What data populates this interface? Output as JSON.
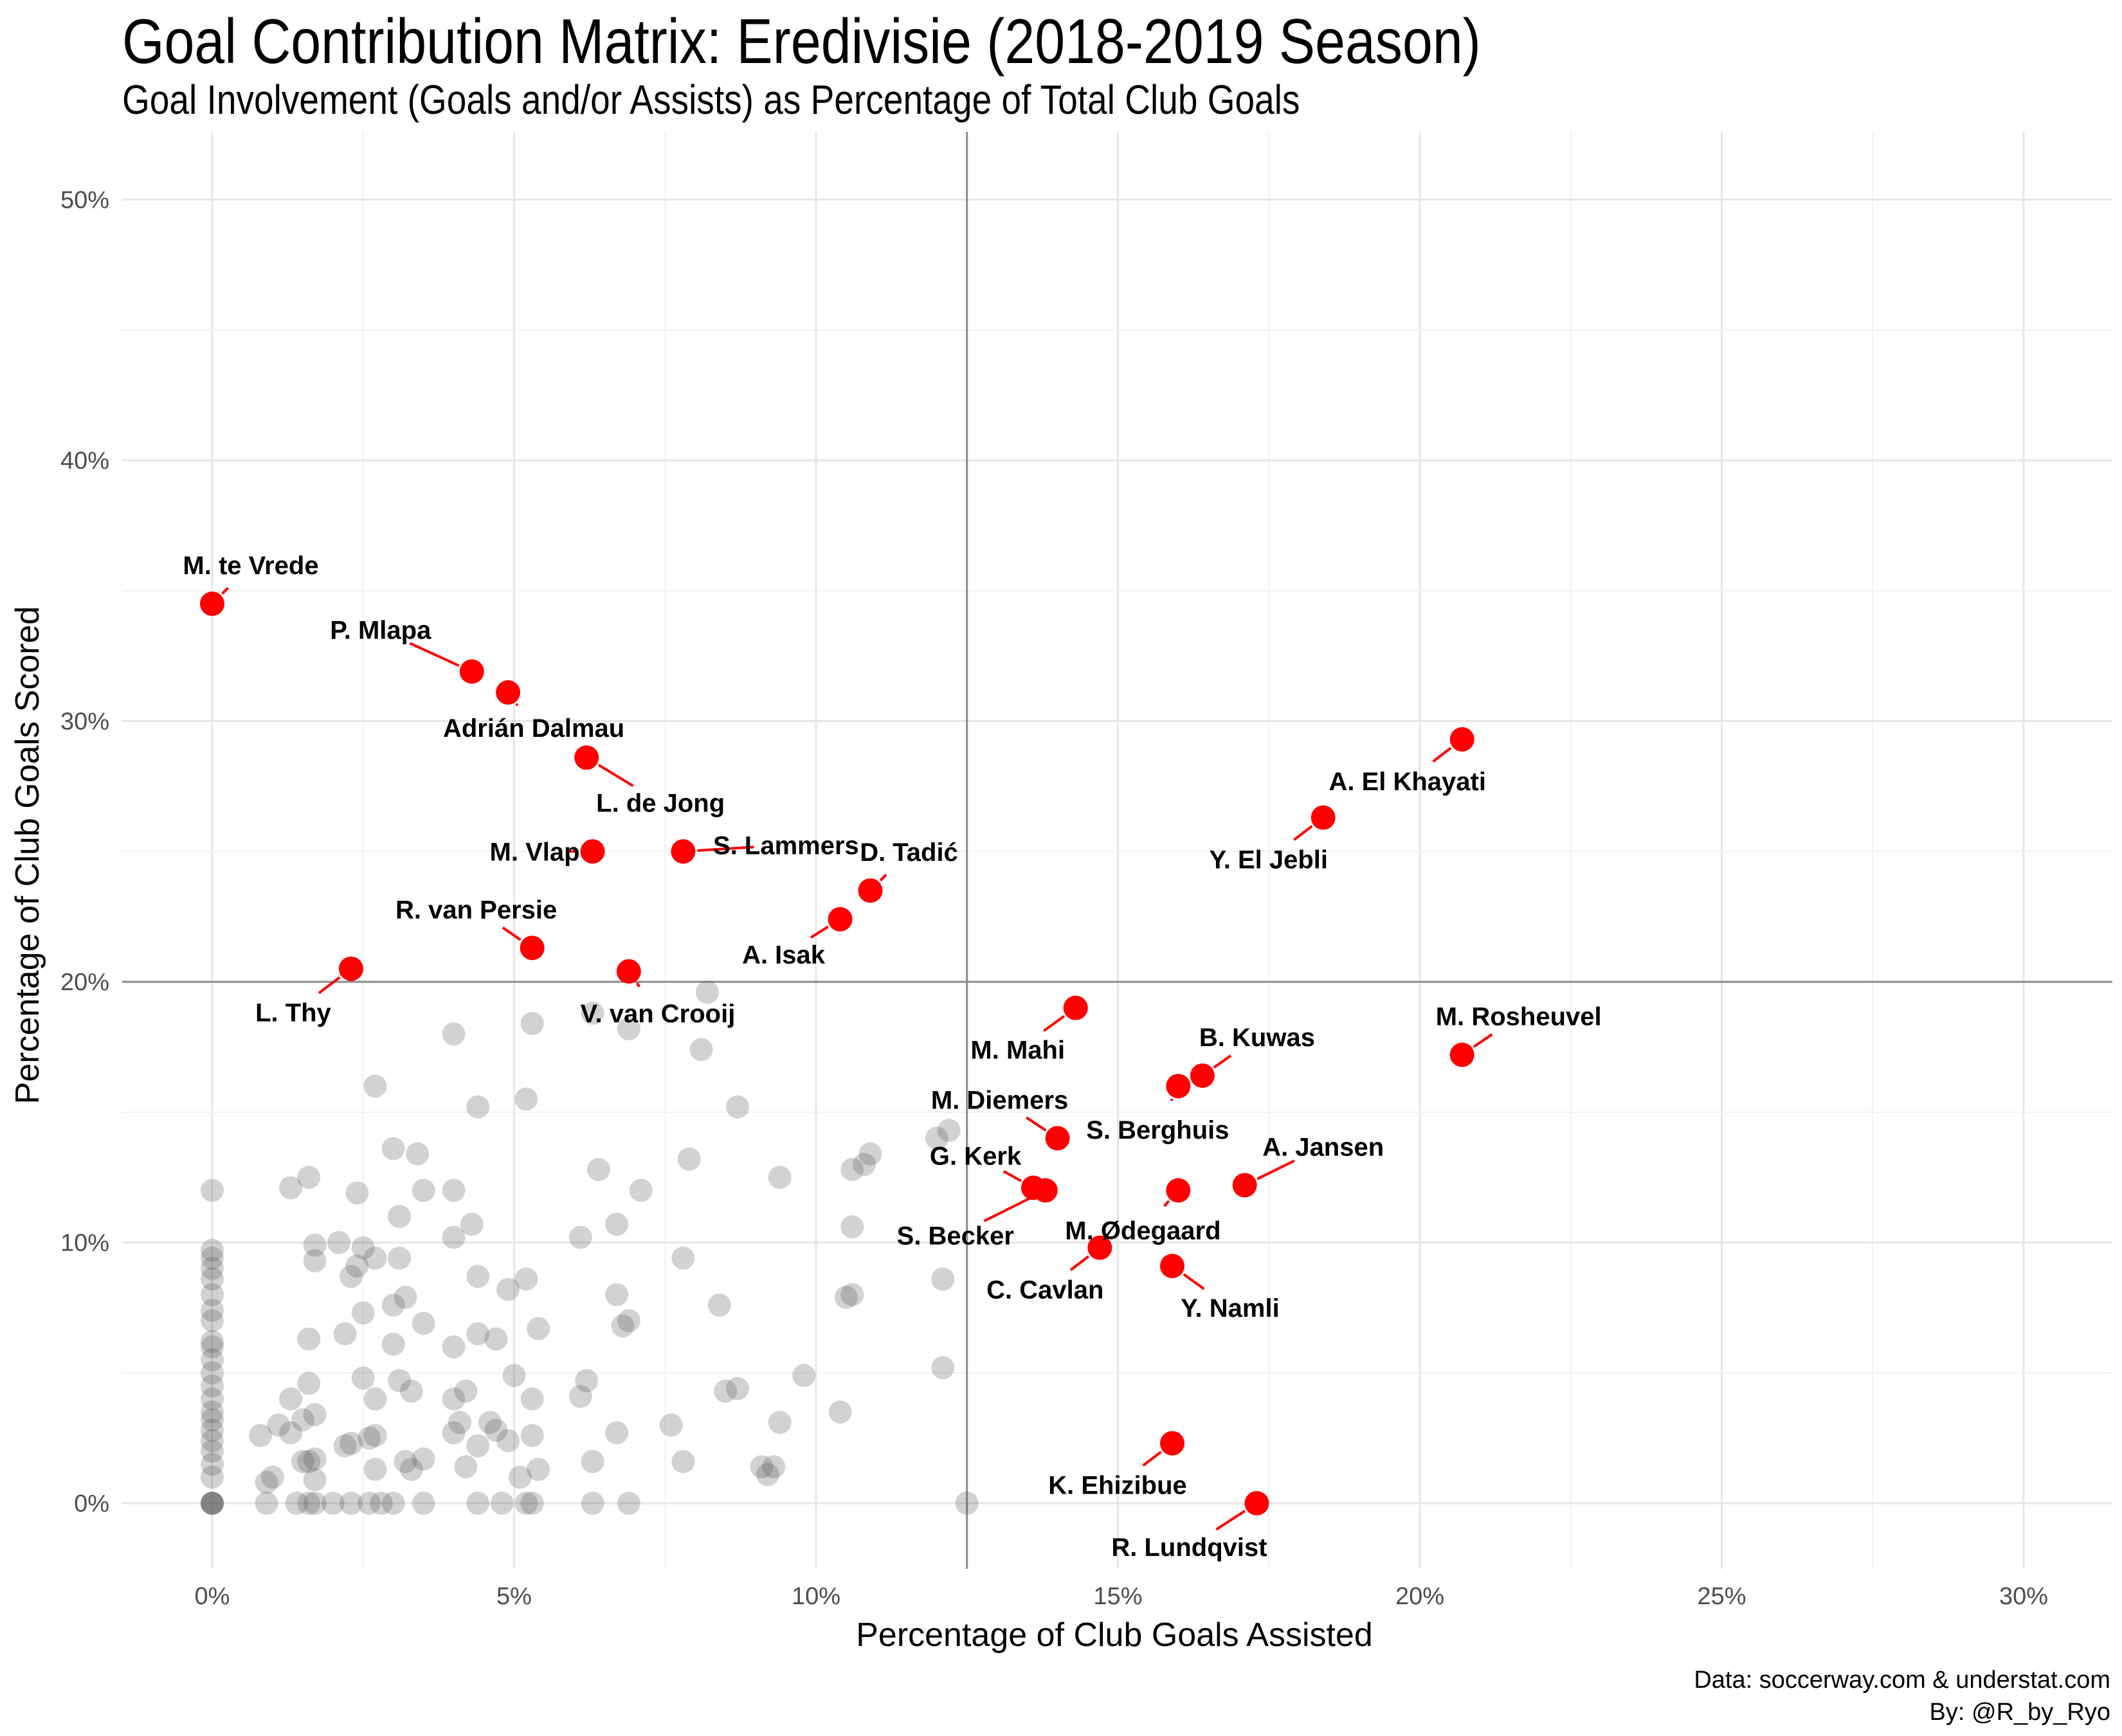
{
  "title": "Goal Contribution Matrix: Eredivisie (2018-2019 Season)",
  "subtitle": "Goal Involvement (Goals and/or Assists) as Percentage of Total Club Goals",
  "caption": [
    "Data: soccerway.com & understat.com",
    "By: @R_by_Ryo"
  ],
  "chart_data": {
    "type": "scatter",
    "xlabel": "Percentage of Club Goals Assisted",
    "ylabel": "Percentage of Club Goals Scored",
    "xlim": [
      0,
      31
    ],
    "ylim": [
      0,
      52
    ],
    "xticks": [
      0,
      5,
      10,
      15,
      20,
      25,
      30
    ],
    "xtick_labels": [
      "0%",
      "5%",
      "10%",
      "15%",
      "20%",
      "25%",
      "30%"
    ],
    "yticks": [
      0,
      10,
      20,
      30,
      40,
      50
    ],
    "ytick_labels": [
      "0%",
      "10%",
      "20%",
      "30%",
      "40%",
      "50%"
    ],
    "reference_lines": {
      "x": 12.5,
      "y": 20
    },
    "grid": true,
    "highlight_color": "#ff0000",
    "other_color": "#4d4d4d",
    "highlighted": [
      {
        "name": "M. te Vrede",
        "x": 0.0,
        "y": 34.5
      },
      {
        "name": "P. Mlapa",
        "x": 4.3,
        "y": 31.9
      },
      {
        "name": "Adrián Dalmau",
        "x": 4.9,
        "y": 31.1
      },
      {
        "name": "L. de Jong",
        "x": 6.2,
        "y": 28.6
      },
      {
        "name": "M. Vlap",
        "x": 6.3,
        "y": 25.0
      },
      {
        "name": "S. Lammers",
        "x": 7.8,
        "y": 25.0
      },
      {
        "name": "D. Tadić",
        "x": 10.9,
        "y": 23.5
      },
      {
        "name": "A. Isak",
        "x": 10.4,
        "y": 22.4
      },
      {
        "name": "R. van Persie",
        "x": 5.3,
        "y": 21.3
      },
      {
        "name": "L. Thy",
        "x": 2.3,
        "y": 20.5
      },
      {
        "name": "V. van Crooij",
        "x": 6.9,
        "y": 20.4
      },
      {
        "name": "A. El Khayati",
        "x": 20.7,
        "y": 29.3
      },
      {
        "name": "Y. El Jebli",
        "x": 18.4,
        "y": 26.3
      },
      {
        "name": "M. Rosheuvel",
        "x": 20.7,
        "y": 17.2
      },
      {
        "name": "M. Mahi",
        "x": 14.3,
        "y": 19.0
      },
      {
        "name": "B. Kuwas",
        "x": 16.4,
        "y": 16.4
      },
      {
        "name": "S. Berghuis",
        "x": 16.0,
        "y": 16.0
      },
      {
        "name": "M. Diemers",
        "x": 14.0,
        "y": 14.0
      },
      {
        "name": "A. Jansen",
        "x": 17.1,
        "y": 12.2
      },
      {
        "name": "G. Kerk",
        "x": 13.6,
        "y": 12.1
      },
      {
        "name": "S. Becker",
        "x": 13.8,
        "y": 12.0
      },
      {
        "name": "M. Ødegaard",
        "x": 16.0,
        "y": 12.0
      },
      {
        "name": "C. Cavlan",
        "x": 14.7,
        "y": 9.8
      },
      {
        "name": "Y. Namli",
        "x": 15.9,
        "y": 9.1
      },
      {
        "name": "K. Ehizibue",
        "x": 15.9,
        "y": 2.3
      },
      {
        "name": "R. Lundqvist",
        "x": 17.3,
        "y": 0.0
      }
    ],
    "others": [
      [
        0,
        0
      ],
      [
        0,
        0
      ],
      [
        0,
        0
      ],
      [
        0,
        0
      ],
      [
        0,
        1.0
      ],
      [
        0,
        1.5
      ],
      [
        0,
        2.0
      ],
      [
        0,
        2.4
      ],
      [
        0,
        2.8
      ],
      [
        0,
        3.2
      ],
      [
        0,
        3.5
      ],
      [
        0,
        4.0
      ],
      [
        0,
        4.5
      ],
      [
        0,
        5.0
      ],
      [
        0,
        5.5
      ],
      [
        0,
        6.0
      ],
      [
        0,
        6.2
      ],
      [
        0,
        7.0
      ],
      [
        0,
        7.4
      ],
      [
        0,
        8.0
      ],
      [
        0,
        8.6
      ],
      [
        0,
        9.0
      ],
      [
        0,
        9.4
      ],
      [
        0,
        9.7
      ],
      [
        0,
        12.0
      ],
      [
        0.9,
        0
      ],
      [
        0.9,
        0.8
      ],
      [
        0.8,
        2.6
      ],
      [
        1.0,
        1.0
      ],
      [
        1.1,
        3.0
      ],
      [
        1.3,
        4.0
      ],
      [
        1.3,
        2.7
      ],
      [
        1.4,
        0
      ],
      [
        1.5,
        3.2
      ],
      [
        1.5,
        1.6
      ],
      [
        1.6,
        1.6
      ],
      [
        1.6,
        0
      ],
      [
        1.7,
        0
      ],
      [
        1.7,
        1.7
      ],
      [
        1.7,
        3.4
      ],
      [
        1.7,
        0.9
      ],
      [
        1.6,
        4.6
      ],
      [
        1.6,
        6.3
      ],
      [
        1.6,
        12.5
      ],
      [
        1.3,
        12.1
      ],
      [
        1.7,
        9.9
      ],
      [
        1.7,
        9.3
      ],
      [
        2.0,
        0
      ],
      [
        2.1,
        10.0
      ],
      [
        2.2,
        2.2
      ],
      [
        2.2,
        6.5
      ],
      [
        2.3,
        2.3
      ],
      [
        2.3,
        8.7
      ],
      [
        2.3,
        0
      ],
      [
        2.4,
        9.1
      ],
      [
        2.4,
        11.9
      ],
      [
        2.5,
        7.3
      ],
      [
        2.5,
        9.8
      ],
      [
        2.5,
        4.8
      ],
      [
        2.6,
        2.5
      ],
      [
        2.6,
        0
      ],
      [
        2.7,
        2.6
      ],
      [
        2.7,
        16.0
      ],
      [
        2.7,
        9.4
      ],
      [
        2.7,
        4.0
      ],
      [
        2.7,
        1.3
      ],
      [
        2.8,
        0
      ],
      [
        3.0,
        0
      ],
      [
        3.0,
        6.1
      ],
      [
        3.0,
        7.6
      ],
      [
        3.0,
        13.6
      ],
      [
        3.1,
        11.0
      ],
      [
        3.1,
        9.4
      ],
      [
        3.1,
        4.7
      ],
      [
        3.2,
        7.9
      ],
      [
        3.2,
        1.6
      ],
      [
        3.3,
        1.3
      ],
      [
        3.3,
        4.3
      ],
      [
        3.4,
        13.4
      ],
      [
        3.5,
        12.0
      ],
      [
        3.5,
        6.9
      ],
      [
        3.5,
        1.7
      ],
      [
        3.5,
        0
      ],
      [
        4.0,
        18.0
      ],
      [
        4.0,
        12.0
      ],
      [
        4.0,
        10.2
      ],
      [
        4.0,
        6.0
      ],
      [
        4.0,
        4.0
      ],
      [
        4.0,
        2.7
      ],
      [
        4.1,
        3.1
      ],
      [
        4.2,
        4.3
      ],
      [
        4.2,
        1.4
      ],
      [
        4.3,
        10.7
      ],
      [
        4.4,
        15.2
      ],
      [
        4.4,
        8.7
      ],
      [
        4.4,
        6.5
      ],
      [
        4.4,
        2.2
      ],
      [
        4.4,
        0
      ],
      [
        4.6,
        3.1
      ],
      [
        4.7,
        2.8
      ],
      [
        4.7,
        6.3
      ],
      [
        4.9,
        8.2
      ],
      [
        4.9,
        2.4
      ],
      [
        5.0,
        4.9
      ],
      [
        4.8,
        0
      ],
      [
        5.2,
        15.5
      ],
      [
        5.2,
        8.6
      ],
      [
        5.2,
        0
      ],
      [
        5.3,
        18.4
      ],
      [
        5.3,
        4.0
      ],
      [
        5.3,
        2.6
      ],
      [
        5.4,
        1.3
      ],
      [
        5.4,
        6.7
      ],
      [
        5.1,
        1.0
      ],
      [
        5.3,
        0
      ],
      [
        6.1,
        10.2
      ],
      [
        6.1,
        4.1
      ],
      [
        6.2,
        4.7
      ],
      [
        6.3,
        18.8
      ],
      [
        6.3,
        1.6
      ],
      [
        6.3,
        0
      ],
      [
        6.4,
        12.8
      ],
      [
        6.7,
        10.7
      ],
      [
        6.7,
        8.0
      ],
      [
        6.7,
        2.7
      ],
      [
        6.8,
        6.8
      ],
      [
        6.9,
        18.2
      ],
      [
        6.9,
        7.0
      ],
      [
        6.9,
        0
      ],
      [
        7.1,
        12.0
      ],
      [
        7.6,
        3.0
      ],
      [
        7.8,
        9.4
      ],
      [
        7.8,
        1.6
      ],
      [
        7.9,
        13.2
      ],
      [
        8.1,
        17.4
      ],
      [
        8.2,
        19.6
      ],
      [
        8.4,
        7.6
      ],
      [
        8.5,
        4.3
      ],
      [
        8.7,
        15.2
      ],
      [
        8.7,
        4.4
      ],
      [
        9.1,
        1.4
      ],
      [
        9.2,
        1.1
      ],
      [
        9.3,
        1.4
      ],
      [
        9.4,
        3.1
      ],
      [
        9.4,
        12.5
      ],
      [
        9.8,
        4.9
      ],
      [
        10.4,
        3.5
      ],
      [
        10.5,
        7.9
      ],
      [
        10.6,
        8.0
      ],
      [
        10.6,
        10.6
      ],
      [
        10.6,
        12.8
      ],
      [
        10.8,
        13.0
      ],
      [
        10.9,
        13.4
      ],
      [
        12.0,
        14.0
      ],
      [
        12.1,
        8.6
      ],
      [
        12.1,
        5.2
      ],
      [
        12.2,
        14.3
      ],
      [
        12.5,
        0
      ]
    ]
  }
}
